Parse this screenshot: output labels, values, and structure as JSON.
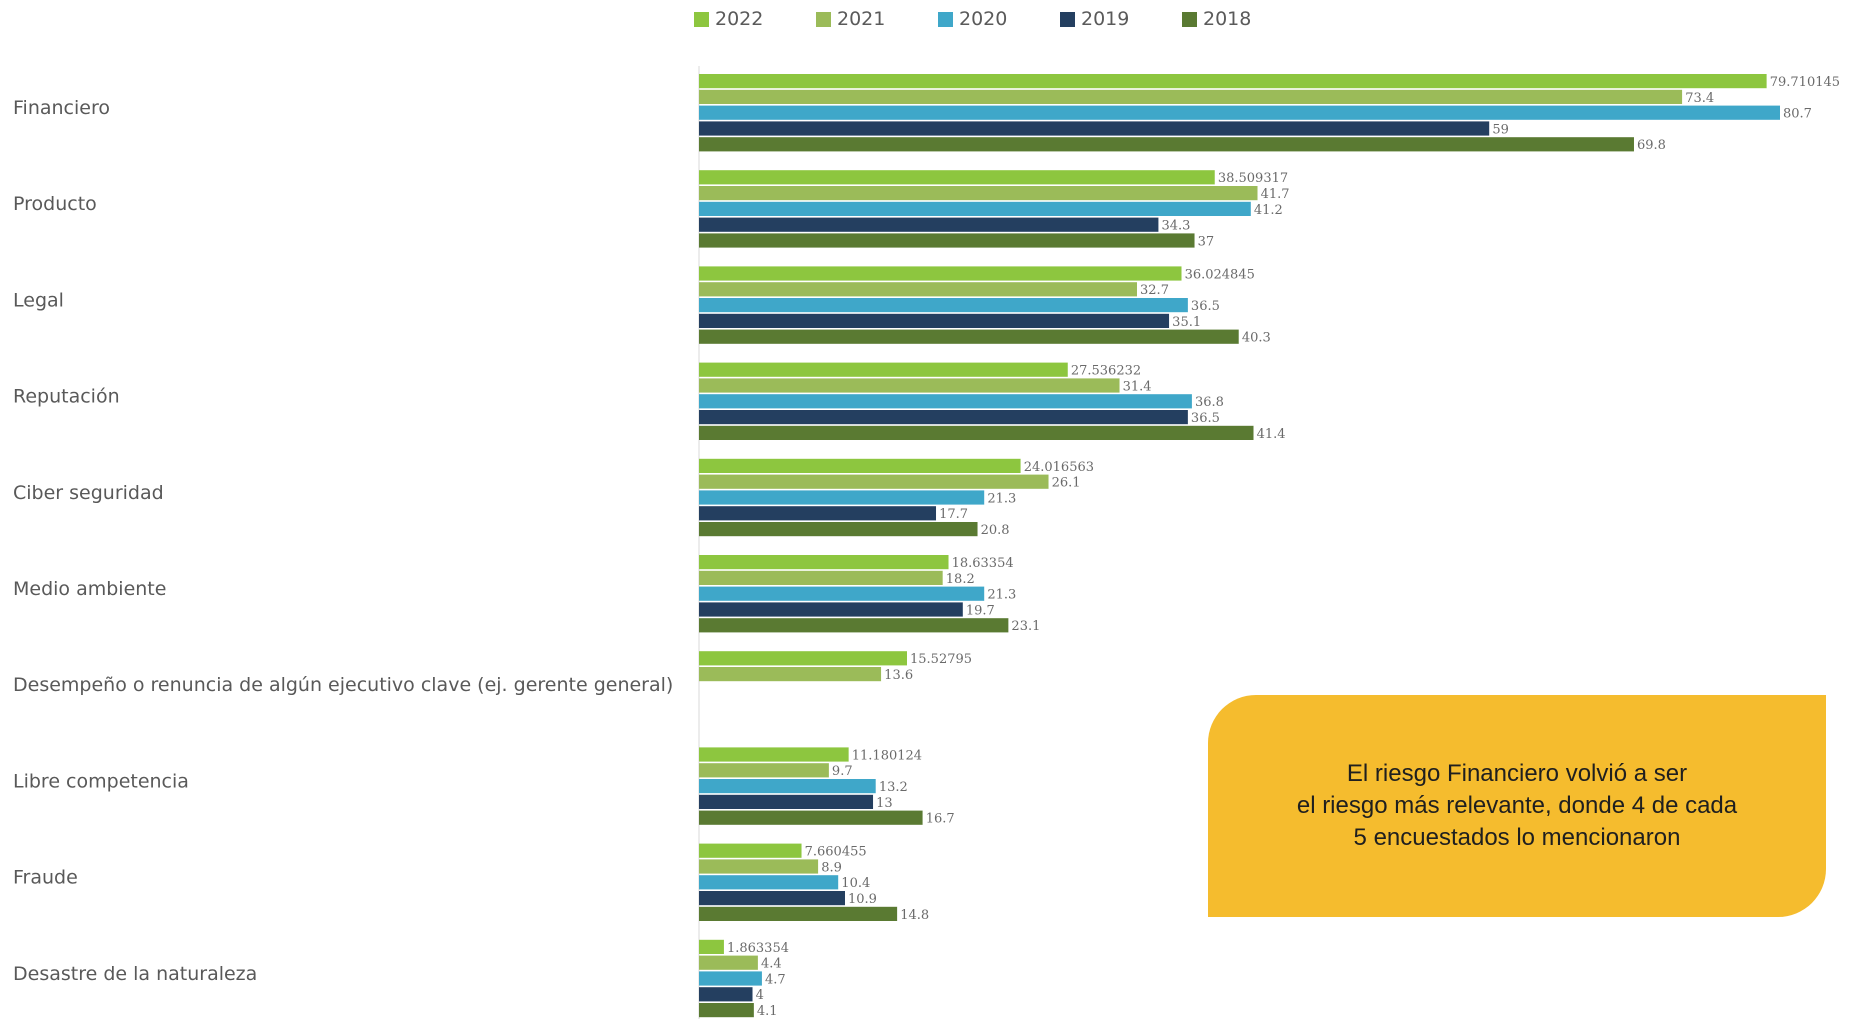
{
  "chart_data": {
    "type": "bar",
    "orientation": "horizontal",
    "categories": [
      "Financiero",
      "Producto",
      "Legal",
      "Reputación",
      "Ciber seguridad",
      "Medio ambiente",
      "Desempeño o renuncia de algún ejecutivo clave (ej. gerente general)",
      "Libre competencia",
      "Fraude",
      "Desastre de la naturaleza"
    ],
    "series": [
      {
        "name": "2022",
        "color": "#8dc63f",
        "values": [
          79.710145,
          38.509317,
          36.024845,
          27.536232,
          24.016563,
          18.63354,
          15.52795,
          11.180124,
          7.660455,
          1.863354
        ],
        "labels": [
          "79.710145",
          "38.509317",
          "36.024845",
          "27.536232",
          "24.016563",
          "18.63354",
          "15.52795",
          "11.180124",
          "7.660455",
          "1.863354"
        ]
      },
      {
        "name": "2021",
        "color": "#9bbb59",
        "values": [
          73.4,
          41.7,
          32.7,
          31.4,
          26.1,
          18.2,
          13.6,
          9.7,
          8.9,
          4.4
        ],
        "labels": [
          "73.4",
          "41.7",
          "32.7",
          "31.4",
          "26.1",
          "18.2",
          "13.6",
          "9.7",
          "8.9",
          "4.4"
        ]
      },
      {
        "name": "2020",
        "color": "#3fa7c9",
        "values": [
          80.7,
          41.2,
          36.5,
          36.8,
          21.3,
          21.3,
          null,
          13.2,
          10.4,
          4.7
        ],
        "labels": [
          "80.7",
          "41.2",
          "36.5",
          "36.8",
          "21.3",
          "21.3",
          "",
          "13.2",
          "10.4",
          "4.7"
        ]
      },
      {
        "name": "2019",
        "color": "#243f60",
        "values": [
          59,
          34.3,
          35.1,
          36.5,
          17.7,
          19.7,
          null,
          13,
          10.9,
          4
        ],
        "labels": [
          "59",
          "34.3",
          "35.1",
          "36.5",
          "17.7",
          "19.7",
          "",
          "13",
          "10.9",
          "4"
        ]
      },
      {
        "name": "2018",
        "color": "#5a7a32",
        "values": [
          69.8,
          37,
          40.3,
          41.4,
          20.8,
          23.1,
          null,
          16.7,
          14.8,
          4.1
        ],
        "labels": [
          "69.8",
          "37",
          "40.3",
          "41.4",
          "20.8",
          "23.1",
          "",
          "16.7",
          "14.8",
          "4.1"
        ]
      }
    ],
    "xlim": [
      0,
      80.7
    ]
  },
  "legend": [
    {
      "name": "2022",
      "color": "#8dc63f"
    },
    {
      "name": "2021",
      "color": "#9bbb59"
    },
    {
      "name": "2020",
      "color": "#3fa7c9"
    },
    {
      "name": "2019",
      "color": "#243f60"
    },
    {
      "name": "2018",
      "color": "#5a7a32"
    }
  ],
  "callout": {
    "line1": "El riesgo Financiero volvió a ser",
    "line2": "el riesgo más relevante, donde 4 de cada",
    "line3": "5 encuestados lo mencionaron"
  }
}
